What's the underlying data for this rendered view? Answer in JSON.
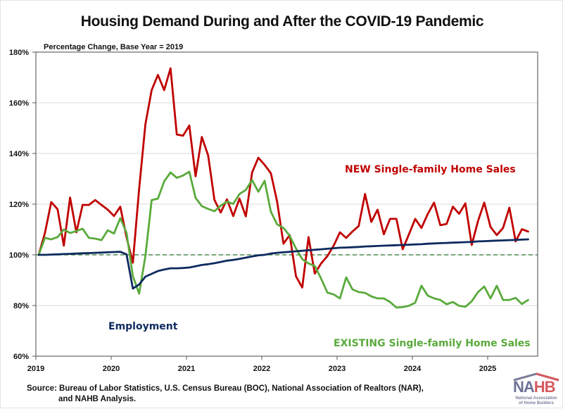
{
  "chart_data": {
    "type": "line",
    "title": "Housing Demand During and After the COVID-19 Pandemic",
    "subtitle": "Percentage Change, Base Year = 2019",
    "xlabel": "",
    "ylabel": "",
    "x_start": "2019-01",
    "x_frequency": "monthly",
    "x_ticks": [
      "2019",
      "2020",
      "2021",
      "2022",
      "2023",
      "2024",
      "2025"
    ],
    "y_ticks": [
      "60%",
      "80%",
      "100%",
      "120%",
      "140%",
      "160%",
      "180%"
    ],
    "ylim": [
      60,
      180
    ],
    "grid": true,
    "reference_line": {
      "value": 100,
      "style": "dashed",
      "color": "#4e8a4e"
    },
    "series": [
      {
        "name": "NEW Single-family Home Sales",
        "color": "#c00000",
        "values": [
          100,
          108.7,
          120.8,
          118,
          103.6,
          122.6,
          108.9,
          119.7,
          119.7,
          121.6,
          119.7,
          117.8,
          115.3,
          119,
          107,
          96.9,
          126,
          151.5,
          165,
          171,
          165,
          173.6,
          147.5,
          147,
          151,
          131,
          146.5,
          139.2,
          121.7,
          116.7,
          121.9,
          115.3,
          122.2,
          115.2,
          132.5,
          138.3,
          135.5,
          132.2,
          121,
          104.4,
          107.8,
          91.5,
          87.1,
          107,
          92.6,
          96.6,
          99.5,
          103.6,
          108.9,
          106.7,
          109.2,
          111.4,
          124,
          113,
          117.8,
          108.1,
          114.2,
          114.2,
          102.2,
          108.1,
          114.2,
          110.6,
          116.1,
          120.6,
          111.7,
          112.2,
          119,
          116.2,
          120.3,
          103.9,
          113.3,
          120.6,
          111,
          107.8,
          110.6,
          118.6,
          105.3,
          110.1,
          109.2
        ]
      },
      {
        "name": "EXISTING Single-family Home Sales",
        "color": "#5aaa3c",
        "values": [
          100,
          106.7,
          106.1,
          107,
          110,
          108.6,
          109.4,
          110.3,
          106.7,
          106.4,
          105.8,
          109.7,
          108.4,
          114.5,
          108.7,
          91.6,
          84.7,
          99.5,
          121.6,
          122.2,
          129,
          132.5,
          130.4,
          131.3,
          132.8,
          122.5,
          119.2,
          118.1,
          117.2,
          119.4,
          121,
          120.1,
          124,
          125.6,
          129.5,
          124.9,
          129.2,
          117,
          112,
          110.6,
          107.5,
          102.5,
          98.3,
          96.6,
          95.6,
          90.6,
          85.1,
          84.4,
          82.8,
          91.1,
          86.4,
          85.3,
          85,
          83.6,
          82.8,
          82.8,
          81.4,
          79.2,
          79.4,
          79.9,
          81.1,
          87.8,
          83.9,
          82.8,
          82.2,
          80.5,
          81.4,
          79.9,
          79.5,
          81.7,
          85.3,
          87.5,
          82.8,
          87.8,
          82.2,
          82.2,
          83,
          80.6,
          82.2
        ]
      },
      {
        "name": "Employment",
        "color": "#0d2a5e",
        "values": [
          100,
          100,
          100.1,
          100.2,
          100.3,
          100.4,
          100.5,
          100.6,
          100.7,
          100.8,
          100.9,
          101,
          101.1,
          101.2,
          100.2,
          86.7,
          88.3,
          91.4,
          92.5,
          93.6,
          94.2,
          94.7,
          94.7,
          94.8,
          95,
          95.5,
          96,
          96.3,
          96.7,
          97.2,
          97.7,
          98,
          98.4,
          98.9,
          99.4,
          99.8,
          100,
          100.5,
          100.8,
          101,
          101.2,
          101.4,
          101.6,
          101.8,
          102,
          102.2,
          102.4,
          102.6,
          102.8,
          102.9,
          103,
          103.1,
          103.3,
          103.4,
          103.5,
          103.6,
          103.7,
          103.8,
          103.9,
          104,
          104.1,
          104.2,
          104.4,
          104.5,
          104.6,
          104.7,
          104.8,
          104.9,
          105,
          105.1,
          105.3,
          105.4,
          105.5,
          105.6,
          105.7,
          105.8,
          105.9,
          106,
          106.1
        ]
      }
    ],
    "annotations": {
      "new": "NEW Single-family Home Sales",
      "existing": "EXISTING Single-family Home Sales",
      "employment": "Employment"
    }
  },
  "source": {
    "line1": "Source: Bureau of Labor Statistics, U.S. Census Bureau (BOC), National Association of Realtors (NAR),",
    "line2": "and NAHB Analysis."
  },
  "logo": {
    "text_n_a": "NA",
    "text_h_b": "HB",
    "subtitle_line1": "National Association",
    "subtitle_line2": "of Home Builders"
  }
}
